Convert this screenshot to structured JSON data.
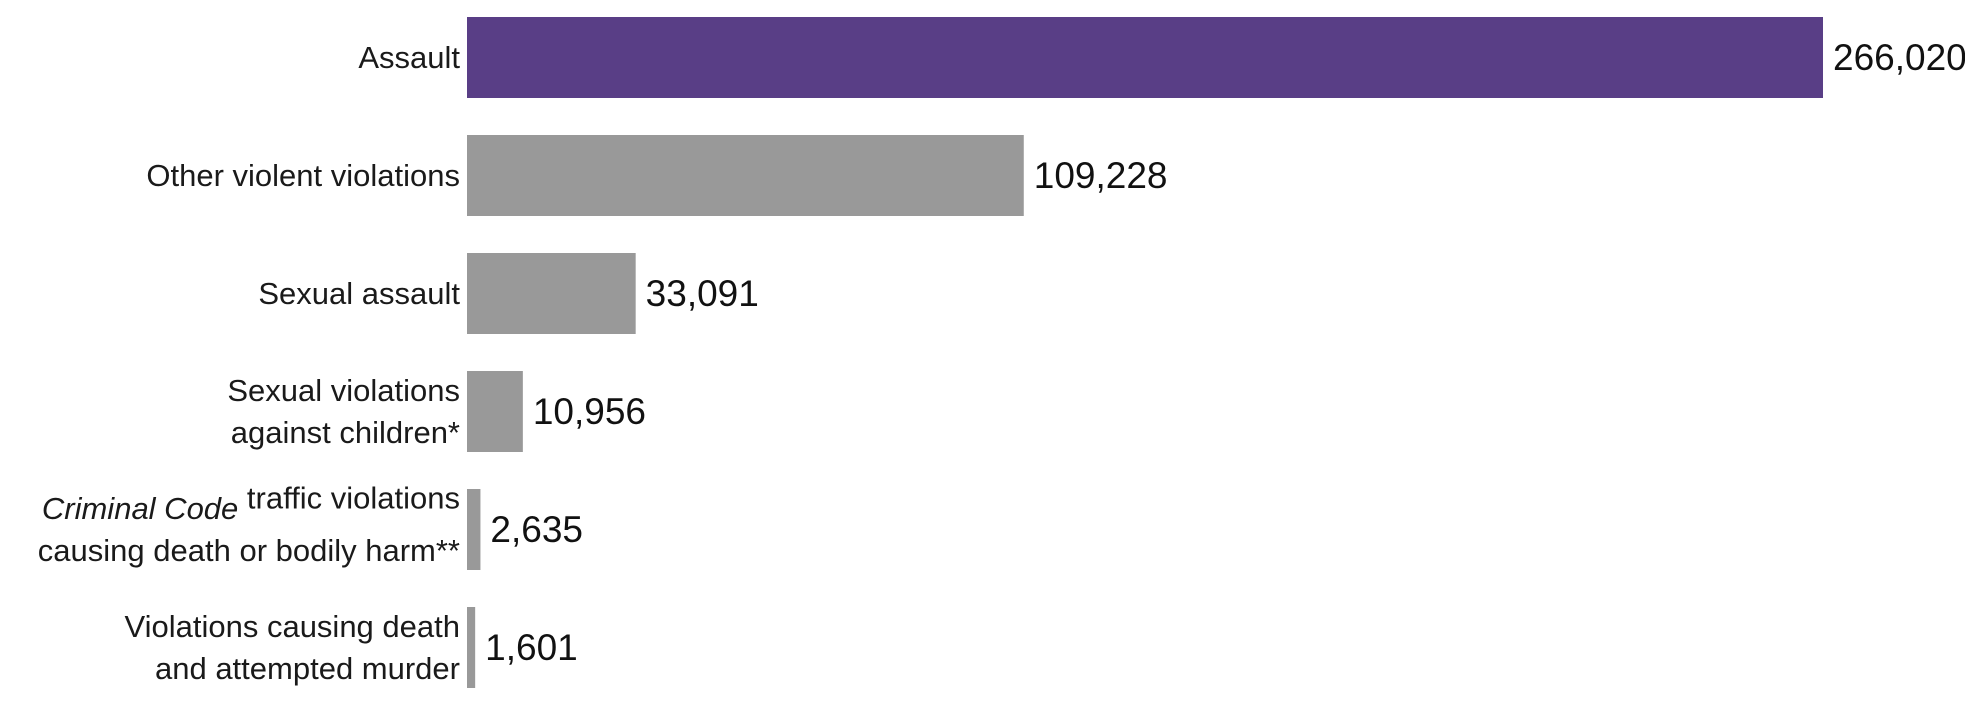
{
  "chart_data": {
    "type": "bar",
    "orientation": "horizontal",
    "categories": [
      "Assault",
      "Other violent violations",
      "Sexual assault",
      "Sexual violations against children*",
      "Criminal Code traffic violations causing death or bodily harm**",
      "Violations causing death and attempted murder"
    ],
    "category_label_lines": [
      [
        [
          {
            "text": "Assault",
            "italic": false
          }
        ]
      ],
      [
        [
          {
            "text": "Other violent violations",
            "italic": false
          }
        ]
      ],
      [
        [
          {
            "text": "Sexual assault",
            "italic": false
          }
        ]
      ],
      [
        [
          {
            "text": "Sexual violations",
            "italic": false
          }
        ],
        [
          {
            "text": "against children*",
            "italic": false
          }
        ]
      ],
      [
        [
          {
            "text": "Criminal Code",
            "italic": true
          },
          {
            "text": " traffic violations",
            "italic": false
          }
        ],
        [
          {
            "text": "causing death or bodily harm**",
            "italic": false
          }
        ]
      ],
      [
        [
          {
            "text": "Violations causing death",
            "italic": false
          }
        ],
        [
          {
            "text": "and attempted murder",
            "italic": false
          }
        ]
      ]
    ],
    "values": [
      266020,
      109228,
      33091,
      10956,
      2635,
      1601
    ],
    "value_labels": [
      "266,020",
      "109,228",
      "33,091",
      "10,956",
      "2,635",
      "1,601"
    ],
    "colors": [
      "#593e86",
      "#999999",
      "#999999",
      "#999999",
      "#999999",
      "#999999"
    ],
    "xlim": [
      0,
      266020
    ],
    "title": "",
    "xlabel": "",
    "ylabel": "",
    "grid": false,
    "legend": "none"
  }
}
